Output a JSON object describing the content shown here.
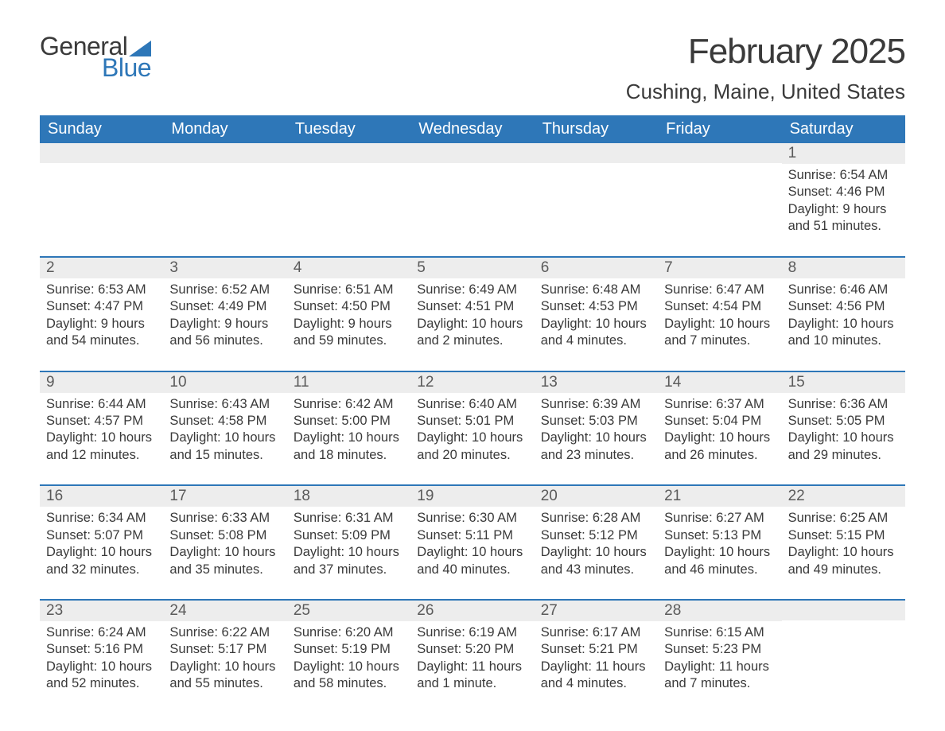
{
  "logo": {
    "text1": "General",
    "text2": "Blue",
    "icon_color": "#2e77b8"
  },
  "title": "February 2025",
  "subtitle": "Cushing, Maine, United States",
  "colors": {
    "header_bg": "#2e77b8",
    "header_text": "#ffffff",
    "daynum_bg": "#ededed",
    "divider": "#2e77b8",
    "body_text": "#3a3a3a",
    "page_bg": "#ffffff"
  },
  "typography": {
    "title_fontsize": 44,
    "subtitle_fontsize": 26,
    "dayheader_fontsize": 20,
    "body_fontsize": 16.5
  },
  "day_headers": [
    "Sunday",
    "Monday",
    "Tuesday",
    "Wednesday",
    "Thursday",
    "Friday",
    "Saturday"
  ],
  "weeks": [
    [
      {
        "n": "",
        "empty": true
      },
      {
        "n": "",
        "empty": true
      },
      {
        "n": "",
        "empty": true
      },
      {
        "n": "",
        "empty": true
      },
      {
        "n": "",
        "empty": true
      },
      {
        "n": "",
        "empty": true
      },
      {
        "n": "1",
        "sunrise": "Sunrise: 6:54 AM",
        "sunset": "Sunset: 4:46 PM",
        "daylight1": "Daylight: 9 hours",
        "daylight2": "and 51 minutes."
      }
    ],
    [
      {
        "n": "2",
        "sunrise": "Sunrise: 6:53 AM",
        "sunset": "Sunset: 4:47 PM",
        "daylight1": "Daylight: 9 hours",
        "daylight2": "and 54 minutes."
      },
      {
        "n": "3",
        "sunrise": "Sunrise: 6:52 AM",
        "sunset": "Sunset: 4:49 PM",
        "daylight1": "Daylight: 9 hours",
        "daylight2": "and 56 minutes."
      },
      {
        "n": "4",
        "sunrise": "Sunrise: 6:51 AM",
        "sunset": "Sunset: 4:50 PM",
        "daylight1": "Daylight: 9 hours",
        "daylight2": "and 59 minutes."
      },
      {
        "n": "5",
        "sunrise": "Sunrise: 6:49 AM",
        "sunset": "Sunset: 4:51 PM",
        "daylight1": "Daylight: 10 hours",
        "daylight2": "and 2 minutes."
      },
      {
        "n": "6",
        "sunrise": "Sunrise: 6:48 AM",
        "sunset": "Sunset: 4:53 PM",
        "daylight1": "Daylight: 10 hours",
        "daylight2": "and 4 minutes."
      },
      {
        "n": "7",
        "sunrise": "Sunrise: 6:47 AM",
        "sunset": "Sunset: 4:54 PM",
        "daylight1": "Daylight: 10 hours",
        "daylight2": "and 7 minutes."
      },
      {
        "n": "8",
        "sunrise": "Sunrise: 6:46 AM",
        "sunset": "Sunset: 4:56 PM",
        "daylight1": "Daylight: 10 hours",
        "daylight2": "and 10 minutes."
      }
    ],
    [
      {
        "n": "9",
        "sunrise": "Sunrise: 6:44 AM",
        "sunset": "Sunset: 4:57 PM",
        "daylight1": "Daylight: 10 hours",
        "daylight2": "and 12 minutes."
      },
      {
        "n": "10",
        "sunrise": "Sunrise: 6:43 AM",
        "sunset": "Sunset: 4:58 PM",
        "daylight1": "Daylight: 10 hours",
        "daylight2": "and 15 minutes."
      },
      {
        "n": "11",
        "sunrise": "Sunrise: 6:42 AM",
        "sunset": "Sunset: 5:00 PM",
        "daylight1": "Daylight: 10 hours",
        "daylight2": "and 18 minutes."
      },
      {
        "n": "12",
        "sunrise": "Sunrise: 6:40 AM",
        "sunset": "Sunset: 5:01 PM",
        "daylight1": "Daylight: 10 hours",
        "daylight2": "and 20 minutes."
      },
      {
        "n": "13",
        "sunrise": "Sunrise: 6:39 AM",
        "sunset": "Sunset: 5:03 PM",
        "daylight1": "Daylight: 10 hours",
        "daylight2": "and 23 minutes."
      },
      {
        "n": "14",
        "sunrise": "Sunrise: 6:37 AM",
        "sunset": "Sunset: 5:04 PM",
        "daylight1": "Daylight: 10 hours",
        "daylight2": "and 26 minutes."
      },
      {
        "n": "15",
        "sunrise": "Sunrise: 6:36 AM",
        "sunset": "Sunset: 5:05 PM",
        "daylight1": "Daylight: 10 hours",
        "daylight2": "and 29 minutes."
      }
    ],
    [
      {
        "n": "16",
        "sunrise": "Sunrise: 6:34 AM",
        "sunset": "Sunset: 5:07 PM",
        "daylight1": "Daylight: 10 hours",
        "daylight2": "and 32 minutes."
      },
      {
        "n": "17",
        "sunrise": "Sunrise: 6:33 AM",
        "sunset": "Sunset: 5:08 PM",
        "daylight1": "Daylight: 10 hours",
        "daylight2": "and 35 minutes."
      },
      {
        "n": "18",
        "sunrise": "Sunrise: 6:31 AM",
        "sunset": "Sunset: 5:09 PM",
        "daylight1": "Daylight: 10 hours",
        "daylight2": "and 37 minutes."
      },
      {
        "n": "19",
        "sunrise": "Sunrise: 6:30 AM",
        "sunset": "Sunset: 5:11 PM",
        "daylight1": "Daylight: 10 hours",
        "daylight2": "and 40 minutes."
      },
      {
        "n": "20",
        "sunrise": "Sunrise: 6:28 AM",
        "sunset": "Sunset: 5:12 PM",
        "daylight1": "Daylight: 10 hours",
        "daylight2": "and 43 minutes."
      },
      {
        "n": "21",
        "sunrise": "Sunrise: 6:27 AM",
        "sunset": "Sunset: 5:13 PM",
        "daylight1": "Daylight: 10 hours",
        "daylight2": "and 46 minutes."
      },
      {
        "n": "22",
        "sunrise": "Sunrise: 6:25 AM",
        "sunset": "Sunset: 5:15 PM",
        "daylight1": "Daylight: 10 hours",
        "daylight2": "and 49 minutes."
      }
    ],
    [
      {
        "n": "23",
        "sunrise": "Sunrise: 6:24 AM",
        "sunset": "Sunset: 5:16 PM",
        "daylight1": "Daylight: 10 hours",
        "daylight2": "and 52 minutes."
      },
      {
        "n": "24",
        "sunrise": "Sunrise: 6:22 AM",
        "sunset": "Sunset: 5:17 PM",
        "daylight1": "Daylight: 10 hours",
        "daylight2": "and 55 minutes."
      },
      {
        "n": "25",
        "sunrise": "Sunrise: 6:20 AM",
        "sunset": "Sunset: 5:19 PM",
        "daylight1": "Daylight: 10 hours",
        "daylight2": "and 58 minutes."
      },
      {
        "n": "26",
        "sunrise": "Sunrise: 6:19 AM",
        "sunset": "Sunset: 5:20 PM",
        "daylight1": "Daylight: 11 hours",
        "daylight2": "and 1 minute."
      },
      {
        "n": "27",
        "sunrise": "Sunrise: 6:17 AM",
        "sunset": "Sunset: 5:21 PM",
        "daylight1": "Daylight: 11 hours",
        "daylight2": "and 4 minutes."
      },
      {
        "n": "28",
        "sunrise": "Sunrise: 6:15 AM",
        "sunset": "Sunset: 5:23 PM",
        "daylight1": "Daylight: 11 hours",
        "daylight2": "and 7 minutes."
      },
      {
        "n": "",
        "empty": true
      }
    ]
  ]
}
